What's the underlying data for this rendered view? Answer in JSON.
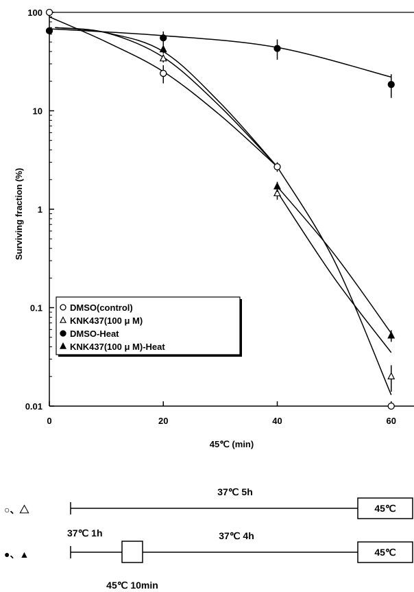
{
  "chart_data": {
    "type": "scatter",
    "ylabel": "Surviving fraction (%)",
    "xlabel": "45℃ (min)",
    "yscale": "log",
    "xlim": [
      0,
      64
    ],
    "ylim": [
      0.01,
      100
    ],
    "xticks": [
      0,
      20,
      40,
      60
    ],
    "xtick_labels": [
      "0",
      "20",
      "40",
      "60"
    ],
    "yticks": [
      0.01,
      0.1,
      1,
      10,
      100
    ],
    "ytick_labels": [
      "0.01",
      "0.1",
      "1",
      "10",
      "100"
    ],
    "legend_placement": "center-left",
    "series": [
      {
        "name": "DMSO(control)",
        "marker": "circle-open",
        "x": [
          0,
          20,
          40,
          60
        ],
        "y": [
          100,
          24,
          2.7,
          0.01
        ],
        "err": [
          0,
          5,
          0.3,
          0
        ]
      },
      {
        "name": "KNK437(100 μ M)",
        "marker": "triangle-open",
        "x": [
          20,
          40,
          60
        ],
        "y": [
          34,
          1.45,
          0.02
        ],
        "err": [
          3,
          0.2,
          0.006
        ]
      },
      {
        "name": "DMSO-Heat",
        "marker": "circle-filled",
        "x": [
          0,
          20,
          40,
          60
        ],
        "y": [
          65,
          55,
          43,
          18.5
        ],
        "err": [
          0,
          9,
          10,
          5
        ]
      },
      {
        "name": "KNK437(100 μ M)-Heat",
        "marker": "triangle-filled",
        "x": [
          20,
          40,
          60
        ],
        "y": [
          42,
          1.7,
          0.052
        ],
        "err": [
          4,
          0.2,
          0.007
        ]
      }
    ],
    "curves": [
      {
        "x": [
          0,
          10,
          20,
          30,
          40
        ],
        "y": [
          90,
          50,
          25,
          9,
          2.7
        ]
      },
      {
        "x": [
          1,
          10,
          20,
          30,
          40
        ],
        "y": [
          70,
          62,
          35,
          11,
          2.7
        ]
      },
      {
        "x": [
          1,
          10,
          20,
          30,
          40
        ],
        "y": [
          70,
          62,
          40,
          12,
          2.7
        ]
      },
      {
        "x": [
          0,
          20,
          40,
          60
        ],
        "y": [
          68,
          58,
          44,
          22
        ]
      },
      {
        "x": [
          40,
          50,
          60
        ],
        "y": [
          2.7,
          0.3,
          0.013
        ]
      },
      {
        "x": [
          40,
          50,
          60
        ],
        "y": [
          1.5,
          0.2,
          0.035
        ]
      },
      {
        "x": [
          40,
          50,
          60
        ],
        "y": [
          1.7,
          0.35,
          0.055
        ]
      }
    ]
  },
  "protocol": {
    "row1_symbols": "○、△",
    "row1_duration": "37℃ 5h",
    "row1_box": "45℃",
    "row2_symbols": "●、▲",
    "row2_first": "37℃ 1h",
    "row2_duration": "37℃ 4h",
    "row2_box": "45℃",
    "row2_pretreat": "45℃ 10min"
  }
}
